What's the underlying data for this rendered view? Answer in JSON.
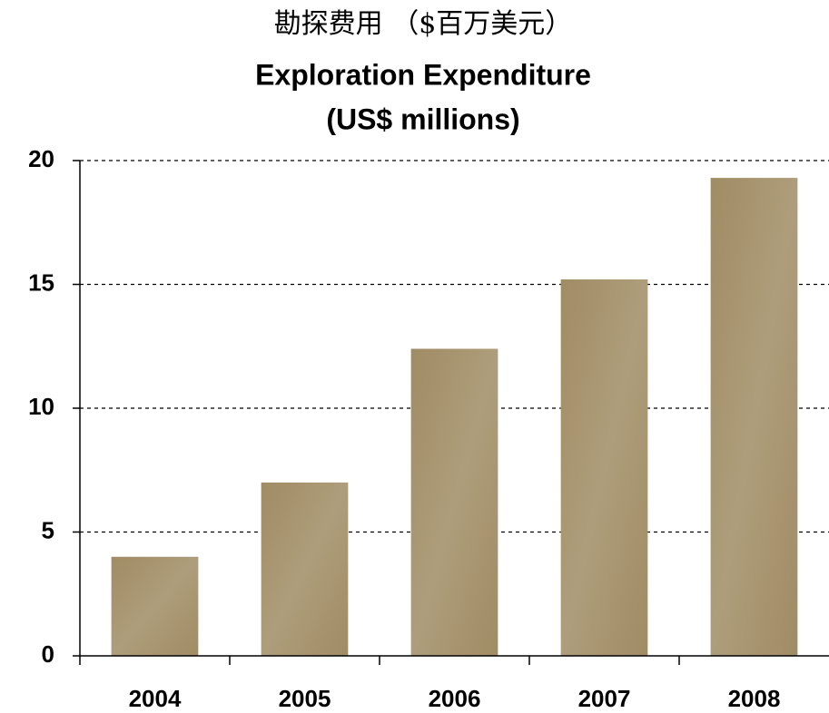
{
  "chart_data": {
    "type": "bar",
    "title_lines": [
      "勘探费用 （$百万美元）",
      "Exploration Expenditure",
      "(US$ millions)"
    ],
    "categories": [
      "2004",
      "2005",
      "2006",
      "2007",
      "2008"
    ],
    "values": [
      4.0,
      7.0,
      12.4,
      15.2,
      19.3
    ],
    "color": "#a08c64",
    "ylim": [
      0,
      20
    ],
    "yticks": [
      0,
      5,
      10,
      15,
      20
    ],
    "grid": true
  }
}
